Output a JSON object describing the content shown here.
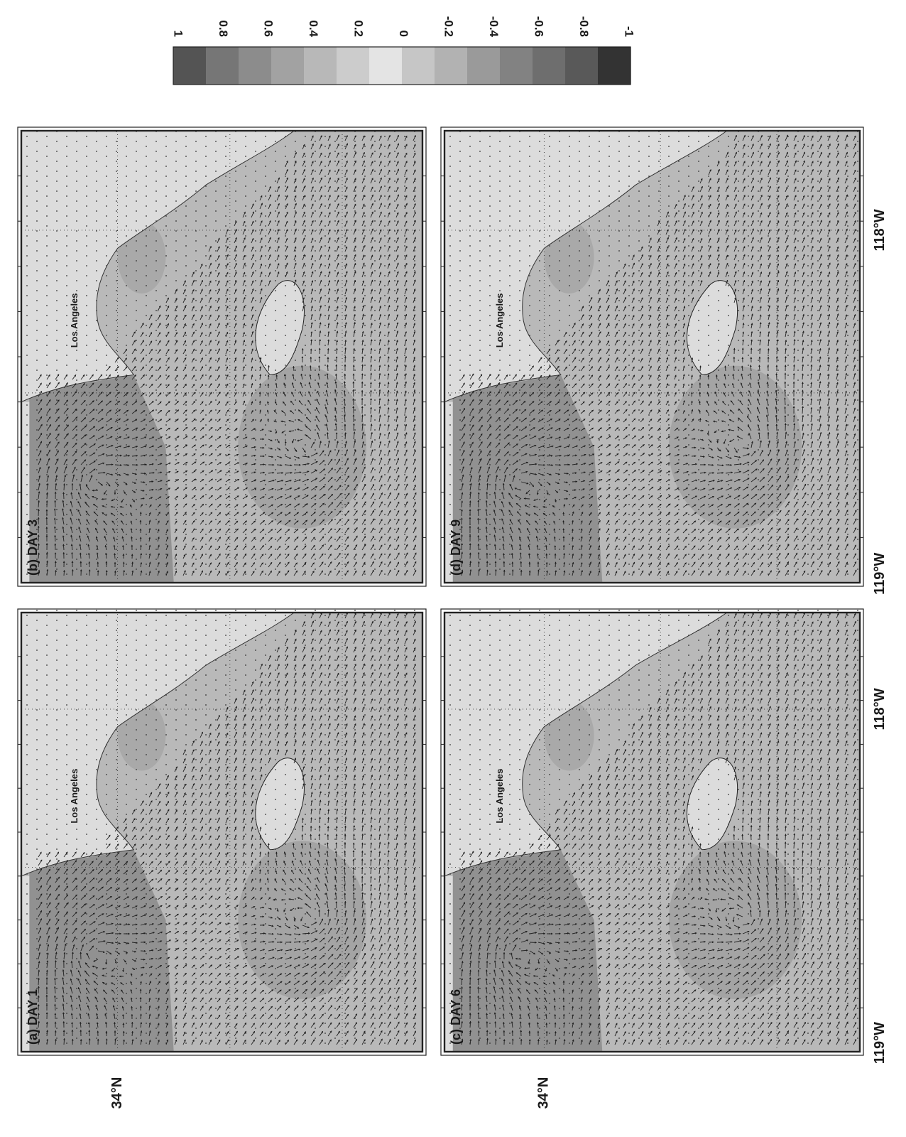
{
  "figure": {
    "panels": [
      {
        "id": "a",
        "label": "(a) DAY 1",
        "city_label": "Los Angeles",
        "lat_label": "34°N",
        "lon_labels": [
          "119°W",
          "118°W"
        ]
      },
      {
        "id": "b",
        "label": "(b) DAY 3",
        "city_label": "Los Angeles",
        "lat_label": "",
        "lon_labels": [
          "119°W",
          "118°W"
        ]
      },
      {
        "id": "c",
        "label": "(c) DAY 6",
        "city_label": "Los Angeles",
        "lat_label": "34°N",
        "lon_labels": [
          "119°W",
          "118°W"
        ]
      },
      {
        "id": "d",
        "label": "(d) DAY 9",
        "city_label": "Los Angeles",
        "lat_label": "",
        "lon_labels": [
          "119°W",
          "118°W"
        ]
      }
    ],
    "colorbar": {
      "ticks": [
        "1",
        "0.8",
        "0.6",
        "0.4",
        "0.2",
        "0",
        "-0.2",
        "-0.4",
        "-0.6",
        "-0.8",
        "-1"
      ],
      "colors": [
        "#545454",
        "#767676",
        "#8c8c8c",
        "#a2a2a2",
        "#b8b8b8",
        "#cccccc",
        "#e4e4e4",
        "#c6c6c6",
        "#b2b2b2",
        "#9a9a9a",
        "#828282",
        "#6e6e6e",
        "#595959",
        "#333333"
      ]
    },
    "colors": {
      "land": "#dcdcdc",
      "sea_base": "#b9b9b9",
      "sea_dark": "#8a8a8a",
      "sea_mid": "#a2a2a2",
      "arrow": "#202020",
      "frame": "#222222"
    }
  }
}
